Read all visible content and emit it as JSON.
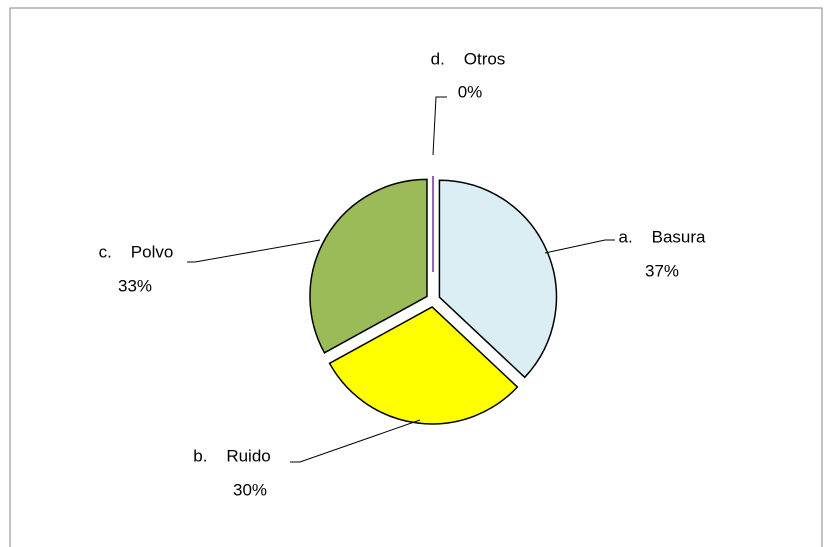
{
  "chart_data": {
    "type": "pie",
    "categories": [
      "a.    Basura",
      "b.    Ruido",
      "c.    Polvo",
      "d.    Otros"
    ],
    "values": [
      37,
      30,
      33,
      0
    ],
    "value_labels": [
      "37%",
      "30%",
      "33%",
      "0%"
    ],
    "colors": [
      "#daeef3",
      "#ffff00",
      "#9bbb59",
      "#7030a0"
    ]
  }
}
